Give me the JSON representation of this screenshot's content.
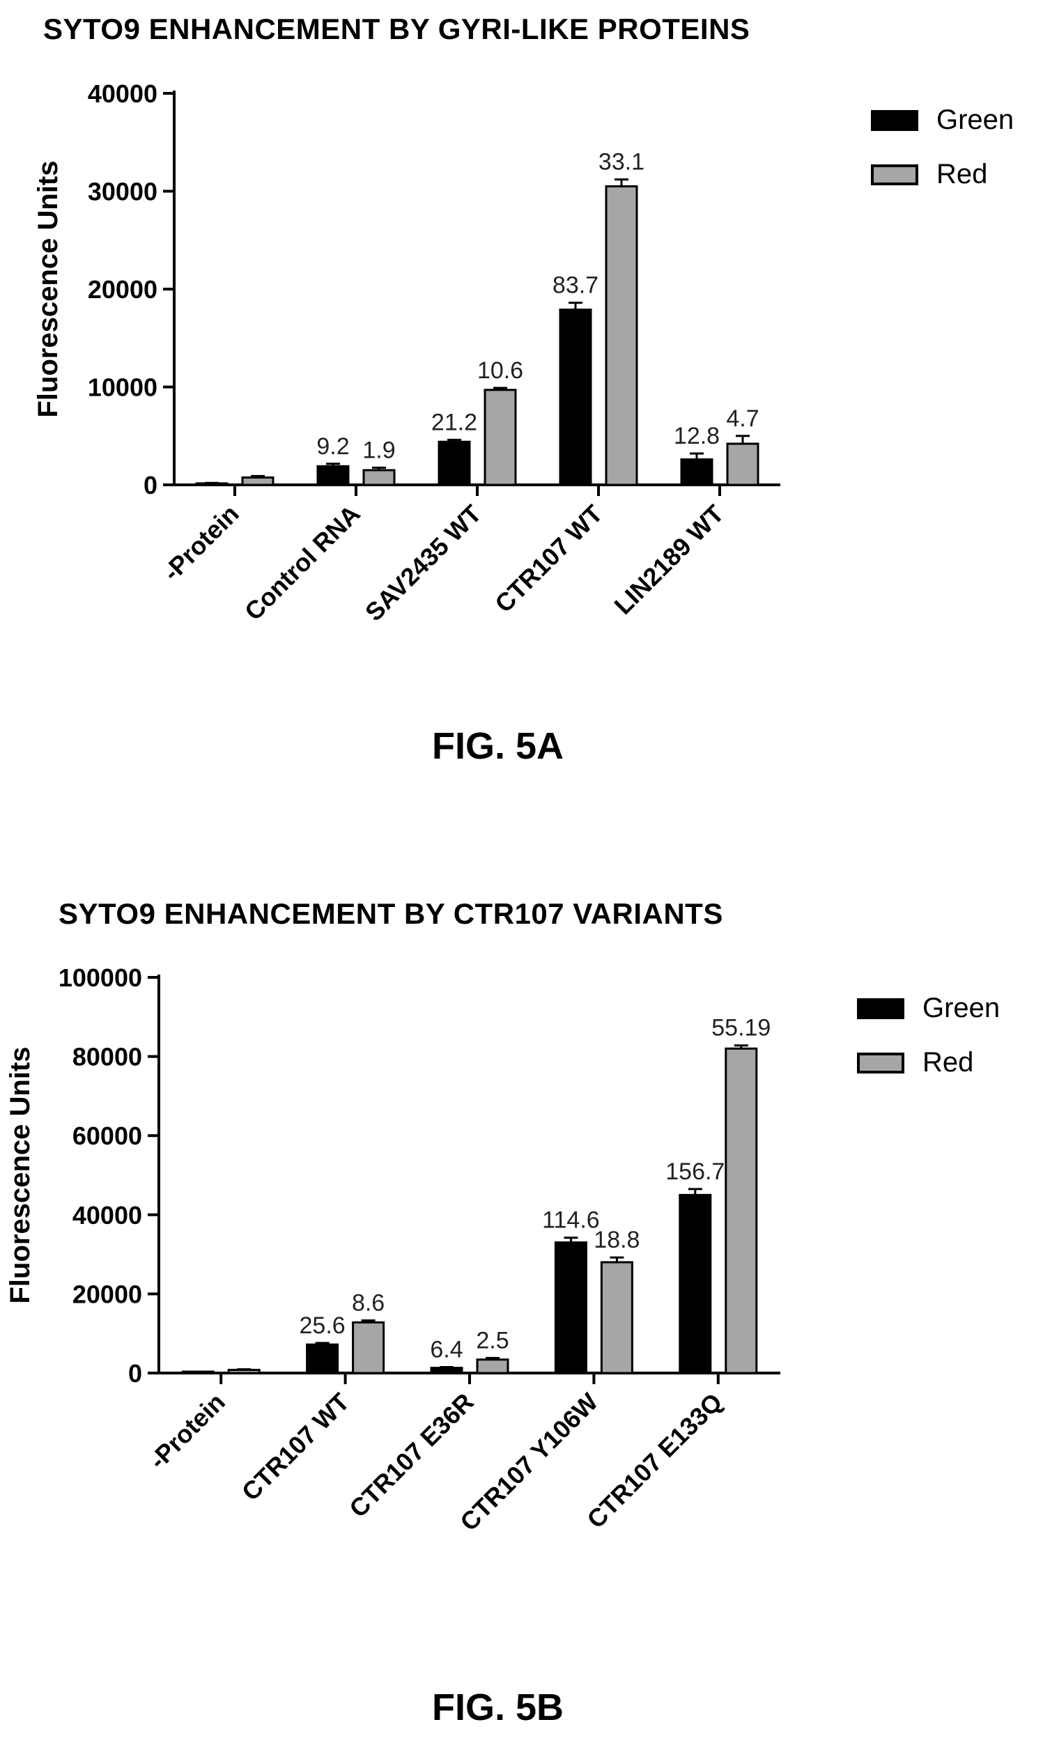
{
  "figure_a": {
    "caption": "FIG. 5A",
    "chart_data": {
      "type": "bar",
      "title": "SYTO9 ENHANCEMENT BY GYRI-LIKE PROTEINS",
      "xlabel": "",
      "ylabel": "Fluorescence  Units",
      "ylim": [
        0,
        40000
      ],
      "yticks": [
        "0",
        "10000",
        "20000",
        "30000",
        "40000"
      ],
      "categories": [
        "-Protein",
        "Control RNA",
        "SAV2435 WT",
        "CTR107 WT",
        "LIN2189 WT"
      ],
      "series": [
        {
          "name": "Green",
          "color": "#000000",
          "values": [
            150,
            1900,
            4400,
            17900,
            2600
          ],
          "errors": [
            50,
            250,
            200,
            700,
            600
          ],
          "labels": [
            "",
            "9.2",
            "21.2",
            "83.7",
            "12.8"
          ]
        },
        {
          "name": "Red",
          "color": "#a6a6a6",
          "values": [
            750,
            1500,
            9700,
            30500,
            4200
          ],
          "errors": [
            150,
            250,
            200,
            700,
            800
          ],
          "labels": [
            "",
            "1.9",
            "10.6",
            "33.1",
            "4.7"
          ]
        }
      ],
      "legend_position": "top-right",
      "grid": false
    }
  },
  "figure_b": {
    "caption": "FIG. 5B",
    "chart_data": {
      "type": "bar",
      "title": "SYTO9 ENHANCEMENT BY CTR107 VARIANTS",
      "xlabel": "",
      "ylabel": "Fluorescence  Units",
      "ylim": [
        0,
        100000
      ],
      "yticks": [
        "0",
        "20000",
        "40000",
        "60000",
        "80000",
        "100000"
      ],
      "categories": [
        "-Protein",
        "CTR107 WT",
        "CTR107 E36R",
        "CTR107 Y106W",
        "CTR107 E133Q"
      ],
      "series": [
        {
          "name": "Green",
          "color": "#000000",
          "values": [
            0,
            7200,
            1300,
            33000,
            45000
          ],
          "errors": [
            0,
            400,
            200,
            1200,
            1500
          ],
          "labels": [
            "",
            "25.6",
            "6.4",
            "114.6",
            "156.7"
          ]
        },
        {
          "name": "Red",
          "color": "#a6a6a6",
          "values": [
            800,
            12800,
            3400,
            28000,
            82000
          ],
          "errors": [
            150,
            500,
            400,
            1200,
            800
          ],
          "labels": [
            "",
            "8.6",
            "2.5",
            "18.8",
            "55.19"
          ]
        }
      ],
      "legend_position": "top-right",
      "grid": false
    }
  }
}
